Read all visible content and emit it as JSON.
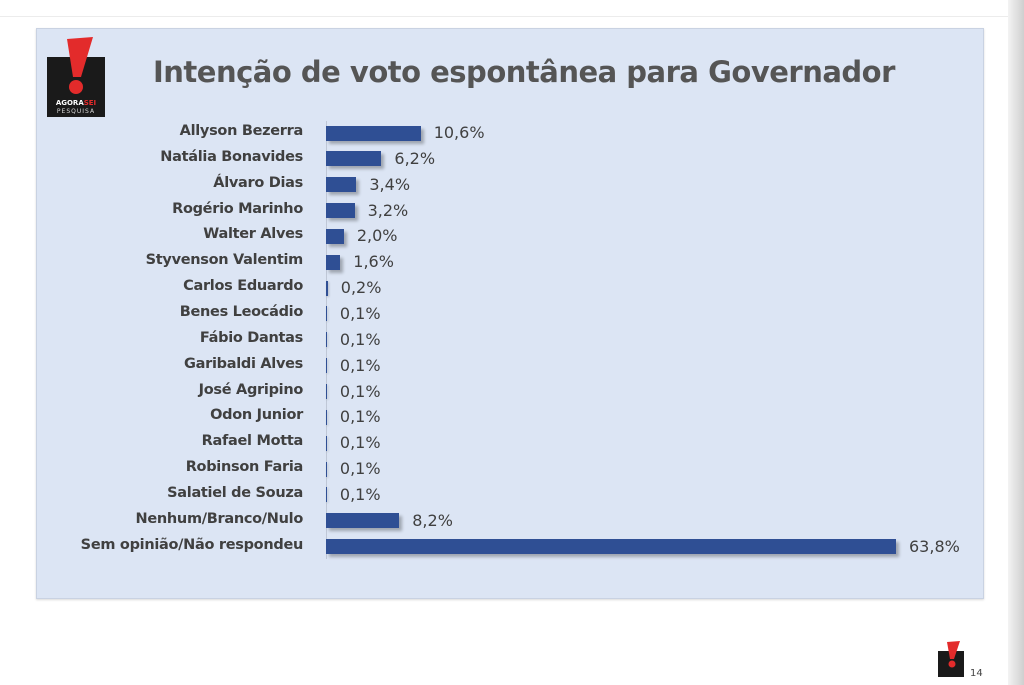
{
  "logo": {
    "word_main": "AGORA",
    "word_accent": "SEI",
    "sub": "PESQUISA"
  },
  "chart_data": {
    "type": "bar",
    "orientation": "horizontal",
    "title": "Intenção de voto espontânea para Governador",
    "categories": [
      "Allyson Bezerra",
      "Natália Bonavides",
      "Álvaro Dias",
      "Rogério Marinho",
      "Walter Alves",
      "Styvenson Valentim",
      "Carlos Eduardo",
      "Benes Leocádio",
      "Fábio Dantas",
      "Garibaldi Alves",
      "José Agripino",
      "Odon Junior",
      "Rafael Motta",
      "Robinson Faria",
      "Salatiel de Souza",
      "Nenhum/Branco/Nulo",
      "Sem opinião/Não respondeu"
    ],
    "values": [
      10.6,
      6.2,
      3.4,
      3.2,
      2.0,
      1.6,
      0.2,
      0.1,
      0.1,
      0.1,
      0.1,
      0.1,
      0.1,
      0.1,
      0.1,
      8.2,
      63.8
    ],
    "value_labels": [
      "10,6%",
      "6,2%",
      "3,4%",
      "3,2%",
      "2,0%",
      "1,6%",
      "0,2%",
      "0,1%",
      "0,1%",
      "0,1%",
      "0,1%",
      "0,1%",
      "0,1%",
      "0,1%",
      "0,1%",
      "8,2%",
      "63,8%"
    ],
    "xlim": [
      0,
      63.8
    ],
    "grid": false,
    "bar_color": "#2f4f94",
    "background": "#dce5f4"
  },
  "footer": {
    "page_number": "14"
  }
}
